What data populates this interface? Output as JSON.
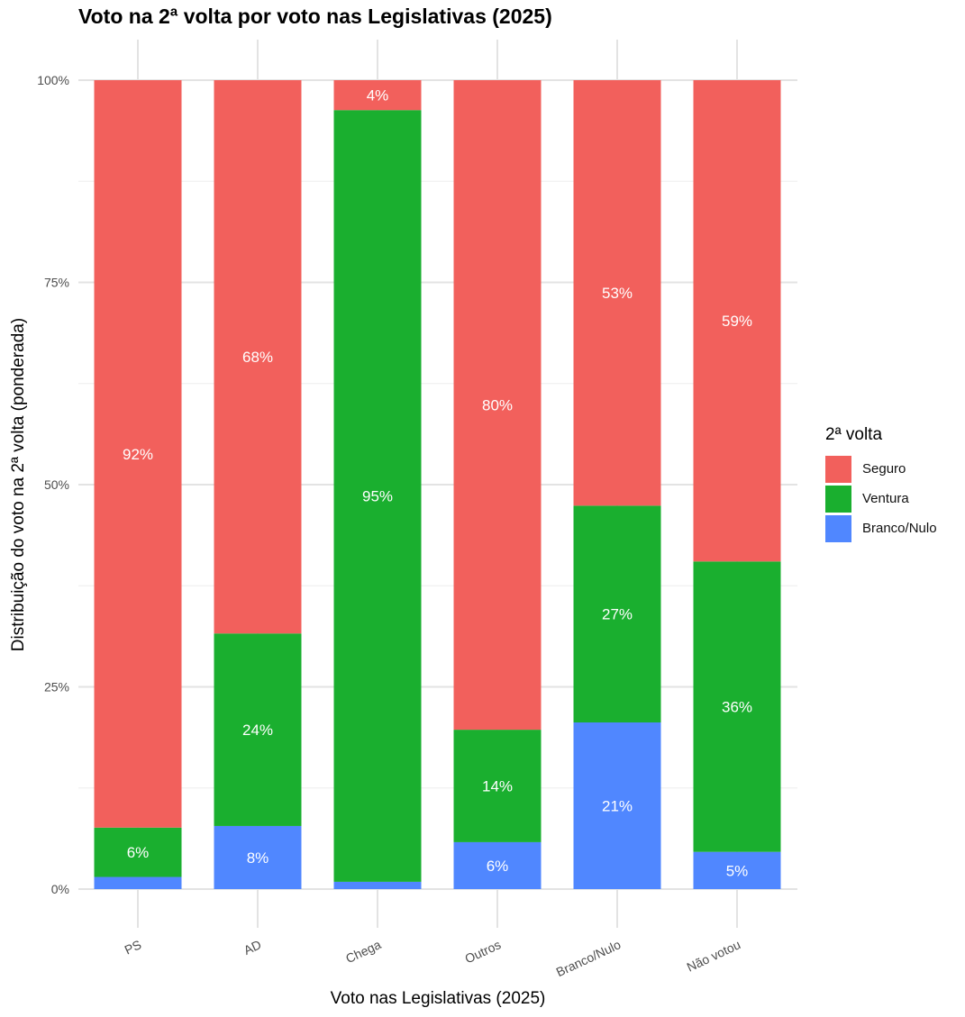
{
  "chart_data": {
    "type": "bar",
    "stacked": true,
    "title": "Voto na 2ª volta por voto nas Legislativas (2025)",
    "xlabel": "Voto nas Legislativas (2025)",
    "ylabel": "Distribuição do voto na 2ª volta (ponderada)",
    "ylim": [
      0,
      100
    ],
    "yticks": [
      "0%",
      "25%",
      "50%",
      "75%",
      "100%"
    ],
    "categories": [
      "PS",
      "AD",
      "Chega",
      "Outros",
      "Branco/Nulo",
      "Não votou"
    ],
    "series": [
      {
        "name": "Branco/Nulo",
        "color": "#5087FF",
        "values": [
          1.5,
          7.8,
          0.9,
          5.8,
          20.6,
          4.6
        ],
        "labels": [
          "",
          "8%",
          "",
          "6%",
          "21%",
          "5%"
        ]
      },
      {
        "name": "Ventura",
        "color": "#1AAF2F",
        "values": [
          6.1,
          23.8,
          95.4,
          13.9,
          26.8,
          35.9
        ],
        "labels": [
          "6%",
          "24%",
          "95%",
          "14%",
          "27%",
          "36%"
        ]
      },
      {
        "name": "Seguro",
        "color": "#F2605C",
        "values": [
          92.4,
          68.4,
          3.7,
          80.3,
          52.6,
          59.5
        ],
        "labels": [
          "92%",
          "68%",
          "4%",
          "80%",
          "53%",
          "59%"
        ]
      }
    ],
    "legend": {
      "title": "2ª volta",
      "position": "right",
      "items": [
        {
          "label": "Seguro",
          "color": "#F2605C"
        },
        {
          "label": "Ventura",
          "color": "#1AAF2F"
        },
        {
          "label": "Branco/Nulo",
          "color": "#5087FF"
        }
      ]
    },
    "grid": true
  }
}
